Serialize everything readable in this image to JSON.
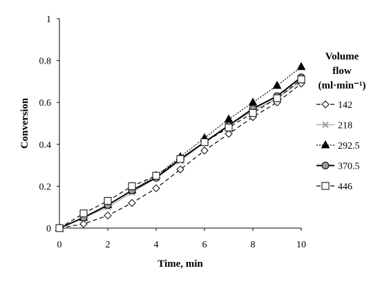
{
  "chart_data": {
    "type": "line",
    "xlabel": "Time, min",
    "ylabel": "Conversion",
    "xlim": [
      0,
      10
    ],
    "ylim": [
      0,
      1
    ],
    "xticks": [
      "0",
      "2",
      "4",
      "6",
      "8",
      "10"
    ],
    "yticks": [
      "0",
      "0.2",
      "0.4",
      "0.6",
      "0.8",
      "1"
    ],
    "grid": false,
    "legend": {
      "placement": "right",
      "title_lines": [
        "Volume",
        "flow",
        "(ml·min⁻¹)"
      ]
    },
    "x": [
      0,
      1,
      2,
      3,
      4,
      5,
      6,
      7,
      8,
      9,
      10
    ],
    "series": [
      {
        "name": "142",
        "values": [
          0,
          0.02,
          0.06,
          0.12,
          0.19,
          0.28,
          0.37,
          0.45,
          0.53,
          0.6,
          0.69
        ],
        "color": "#000000",
        "marker": "diamond-open",
        "line": "dashed"
      },
      {
        "name": "218",
        "values": [
          0,
          0.05,
          0.1,
          0.17,
          0.24,
          0.32,
          0.41,
          0.49,
          0.56,
          0.62,
          0.7
        ],
        "color": "#9e9e9e",
        "marker": "x",
        "line": "solid"
      },
      {
        "name": "292.5",
        "values": [
          0,
          0.05,
          0.11,
          0.18,
          0.25,
          0.34,
          0.43,
          0.52,
          0.6,
          0.68,
          0.77
        ],
        "color": "#000000",
        "marker": "triangle-filled",
        "line": "dotted"
      },
      {
        "name": "370.5",
        "values": [
          0,
          0.05,
          0.11,
          0.18,
          0.24,
          0.33,
          0.41,
          0.49,
          0.57,
          0.63,
          0.72
        ],
        "color": "#000000",
        "marker": "circle-gray",
        "line": "solid"
      },
      {
        "name": "446",
        "values": [
          0,
          0.07,
          0.13,
          0.2,
          0.25,
          0.33,
          0.41,
          0.48,
          0.55,
          0.62,
          0.71
        ],
        "color": "#000000",
        "marker": "square-open",
        "line": "dashed"
      }
    ]
  }
}
